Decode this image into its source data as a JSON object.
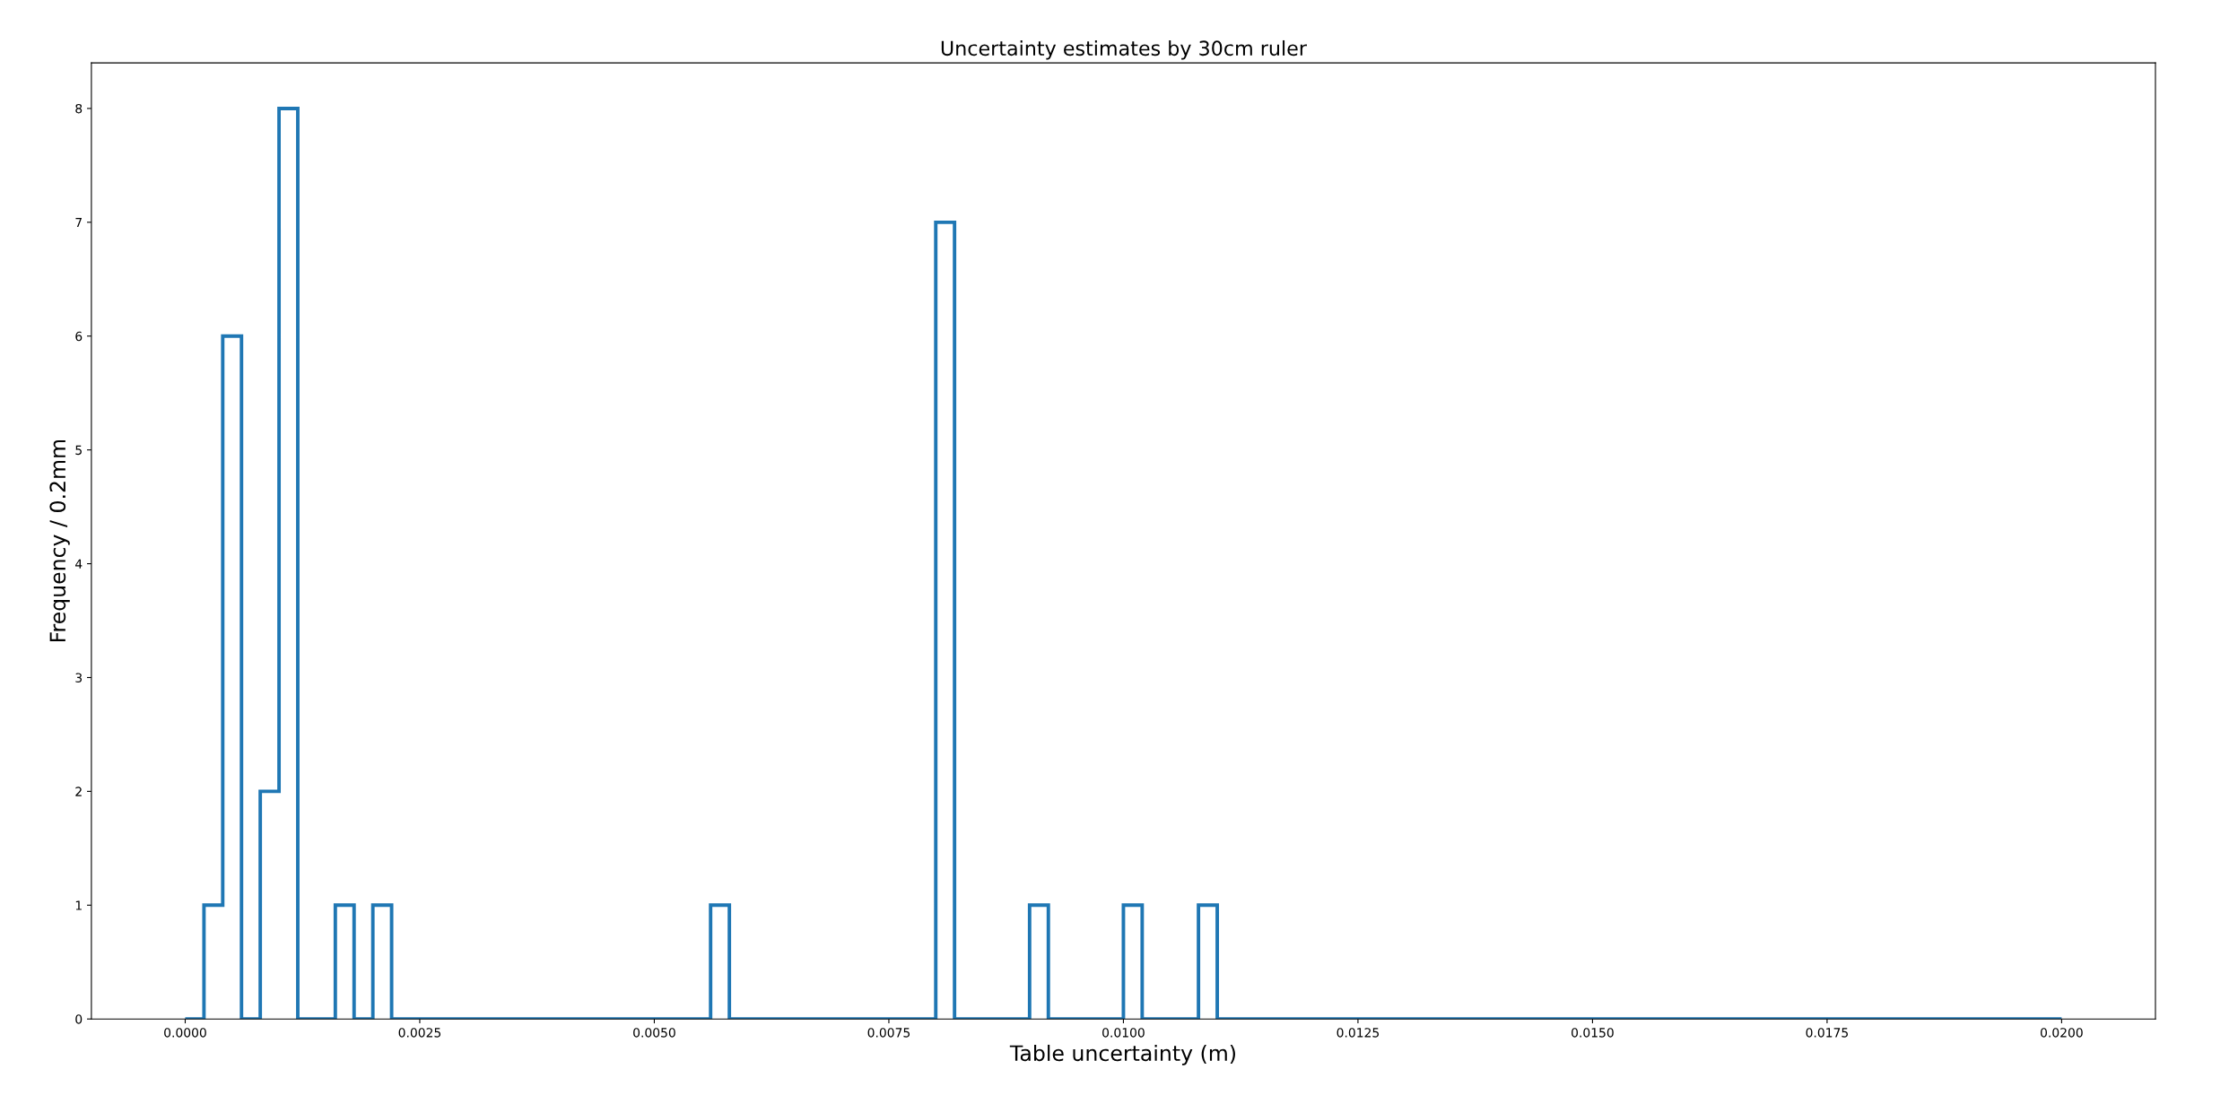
{
  "chart_data": {
    "type": "histogram",
    "title": "Uncertainty estimates by 30cm ruler",
    "xlabel": "Table uncertainty (m)",
    "ylabel": "Frequency / 0.2mm",
    "color": "#1f77b4",
    "bins": [
      0,
      0.0002,
      0.0004,
      0.0006,
      0.0008,
      0.001,
      0.0012,
      0.0014,
      0.0016,
      0.0018,
      0.002,
      0.0022,
      0.0024,
      0.0026,
      0.0028,
      0.003,
      0.0032,
      0.0034,
      0.0036,
      0.0038,
      0.004,
      0.0042,
      0.0044,
      0.0046,
      0.0048,
      0.005,
      0.0052,
      0.0054,
      0.0056,
      0.0058,
      0.006,
      0.0062,
      0.0064,
      0.0066,
      0.0068,
      0.007,
      0.0072,
      0.0074,
      0.0076,
      0.0078,
      0.008,
      0.0082,
      0.0084,
      0.0086,
      0.0088,
      0.009,
      0.0092,
      0.0094,
      0.0096,
      0.0098,
      0.01,
      0.0102,
      0.0104,
      0.0106,
      0.0108,
      0.011,
      0.0112,
      0.0114,
      0.0116,
      0.0118,
      0.012,
      0.0122,
      0.0124,
      0.0126,
      0.0128,
      0.013,
      0.0132,
      0.0134,
      0.0136,
      0.0138,
      0.014,
      0.0142,
      0.0144,
      0.0146,
      0.0148,
      0.015,
      0.0152,
      0.0154,
      0.0156,
      0.0158,
      0.016,
      0.0162,
      0.0164,
      0.0166,
      0.0168,
      0.017,
      0.0172,
      0.0174,
      0.0176,
      0.0178,
      0.018,
      0.0182,
      0.0184,
      0.0186,
      0.0188,
      0.019,
      0.0192,
      0.0194,
      0.0196,
      0.0198,
      0.02
    ],
    "values": [
      0,
      1,
      6,
      0,
      2,
      8,
      0,
      0,
      1,
      0,
      1,
      0,
      0,
      0,
      0,
      0,
      0,
      0,
      0,
      0,
      0,
      0,
      0,
      0,
      0,
      0,
      0,
      0,
      1,
      0,
      0,
      0,
      0,
      0,
      0,
      0,
      0,
      0,
      0,
      0,
      7,
      0,
      0,
      0,
      0,
      1,
      0,
      0,
      0,
      0,
      1,
      0,
      0,
      0,
      1,
      0,
      0,
      0,
      0,
      0,
      0,
      0,
      0,
      0,
      0,
      0,
      0,
      0,
      0,
      0,
      0,
      0,
      0,
      0,
      0,
      0,
      0,
      0,
      0,
      0,
      0,
      0,
      0,
      0,
      0,
      0,
      0,
      0,
      0,
      0,
      0,
      0,
      0,
      0,
      0,
      0,
      0,
      0,
      0,
      0
    ],
    "xlim": [
      -0.001,
      0.021
    ],
    "ylim": [
      0,
      8.4
    ],
    "xticks": [
      {
        "value": 0,
        "label": "0.0000"
      },
      {
        "value": 0.0025,
        "label": "0.0025"
      },
      {
        "value": 0.005,
        "label": "0.0050"
      },
      {
        "value": 0.0075,
        "label": "0.0075"
      },
      {
        "value": 0.01,
        "label": "0.0100"
      },
      {
        "value": 0.0125,
        "label": "0.0125"
      },
      {
        "value": 0.015,
        "label": "0.0150"
      },
      {
        "value": 0.0175,
        "label": "0.0175"
      },
      {
        "value": 0.02,
        "label": "0.0200"
      }
    ],
    "yticks": [
      0,
      1,
      2,
      3,
      4,
      5,
      6,
      7,
      8
    ],
    "grid": false,
    "legend": false
  }
}
